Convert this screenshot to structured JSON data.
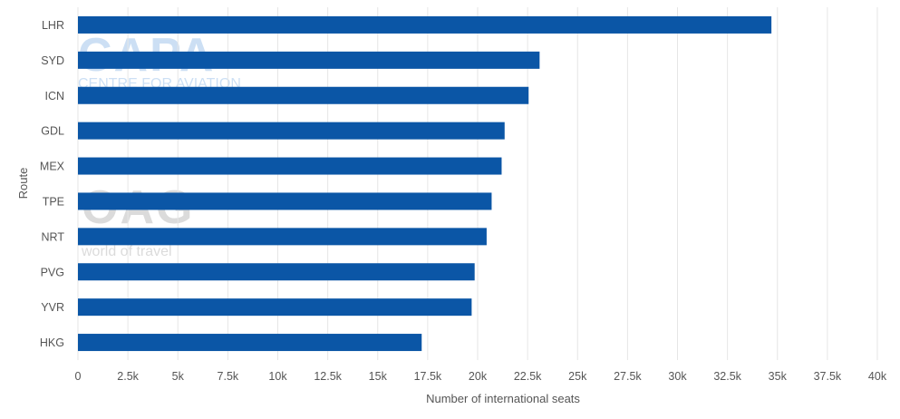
{
  "chart_data": {
    "type": "bar",
    "orientation": "horizontal",
    "categories": [
      "LHR",
      "SYD",
      "ICN",
      "GDL",
      "MEX",
      "TPE",
      "NRT",
      "PVG",
      "YVR",
      "HKG"
    ],
    "values": [
      34700,
      23100,
      22550,
      21350,
      21200,
      20700,
      20450,
      19850,
      19700,
      17200
    ],
    "xlabel": "Number of international seats",
    "ylabel": "Route",
    "xlim": [
      0,
      40000
    ],
    "xticks": [
      0,
      2500,
      5000,
      7500,
      10000,
      12500,
      15000,
      17500,
      20000,
      22500,
      25000,
      27500,
      30000,
      32500,
      35000,
      37500,
      40000
    ],
    "xtick_labels": [
      "0",
      "2.5k",
      "5k",
      "7.5k",
      "10k",
      "12.5k",
      "15k",
      "17.5k",
      "20k",
      "22.5k",
      "25k",
      "27.5k",
      "30k",
      "32.5k",
      "35k",
      "37.5k",
      "40k"
    ],
    "grid": "vertical",
    "bar_color": "#0b56a6",
    "grid_color": "#e6e6e6"
  },
  "watermark": {
    "capa_logo": "CAPA",
    "capa_tagline": "CENTRE FOR AVIATION",
    "oag_logo": "OAG",
    "oag_tagline": "world of travel"
  }
}
